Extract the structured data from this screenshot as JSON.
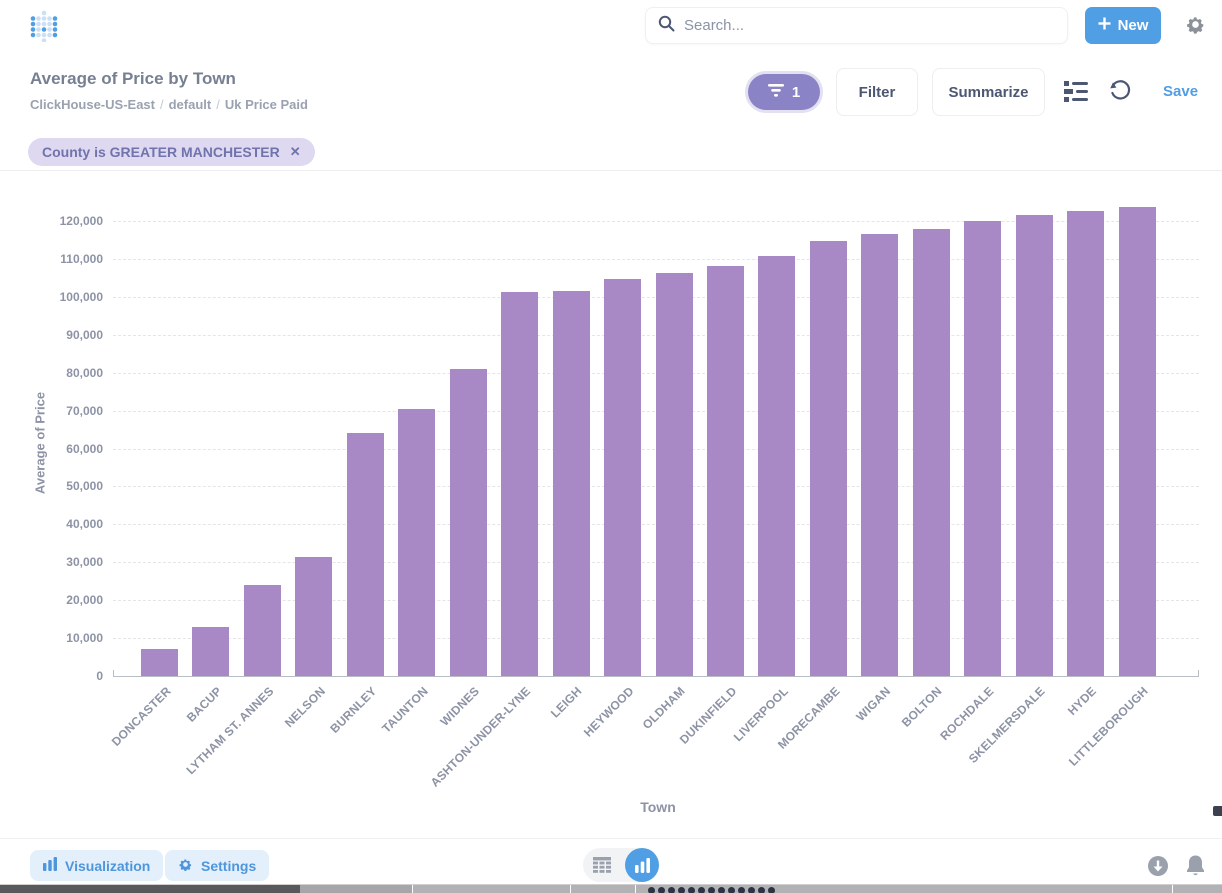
{
  "header": {
    "search": {
      "placeholder": "Search..."
    },
    "new_button": {
      "label": "New"
    }
  },
  "question_bar": {
    "title": "Average of Price by Town",
    "breadcrumb": {
      "parts": [
        "ClickHouse-US-East",
        "default",
        "Uk Price Paid"
      ],
      "separator": "/"
    },
    "filter_count_pill": {
      "count": "1"
    },
    "filter_button": "Filter",
    "summarize_button": "Summarize",
    "save_link": "Save"
  },
  "filter_row": {
    "chips": [
      {
        "label": "County is GREATER MANCHESTER",
        "close": "✕"
      }
    ]
  },
  "chart_data": {
    "type": "bar",
    "title": "",
    "xlabel": "Town",
    "ylabel": "Average of Price",
    "categories": [
      "DONCASTER",
      "BACUP",
      "LYTHAM ST. ANNES",
      "NELSON",
      "BURNLEY",
      "TAUNTON",
      "WIDNES",
      "ASHTON-UNDER-LYNE",
      "LEIGH",
      "HEYWOOD",
      "OLDHAM",
      "DUKINFIELD",
      "LIVERPOOL",
      "MORECAMBE",
      "WIGAN",
      "BOLTON",
      "ROCHDALE",
      "SKELMERSDALE",
      "HYDE",
      "LITTLEBOROUGH"
    ],
    "values": [
      7000,
      13000,
      24000,
      31500,
      64000,
      70500,
      81000,
      101200,
      101500,
      104600,
      106400,
      108200,
      110700,
      114700,
      116600,
      117900,
      120000,
      121700,
      122600,
      123600
    ],
    "ylim": [
      0,
      125000
    ],
    "yticks": [
      0,
      10000,
      20000,
      30000,
      40000,
      50000,
      60000,
      70000,
      80000,
      90000,
      100000,
      110000,
      120000
    ],
    "grid": true,
    "legend": false,
    "bar_color": "#a989c5"
  },
  "footer": {
    "visualization_button": "Visualization",
    "settings_button": "Settings",
    "toggle": {
      "active": "chart"
    }
  },
  "colors": {
    "accent_blue": "#509ee3",
    "bar_purple": "#a989c5",
    "pill_purple": "#8a83c6",
    "chip_bg": "#ded9f0",
    "chip_text": "#7173ad",
    "text_dark": "#4c5773",
    "axis_grey": "#8d93a5"
  }
}
